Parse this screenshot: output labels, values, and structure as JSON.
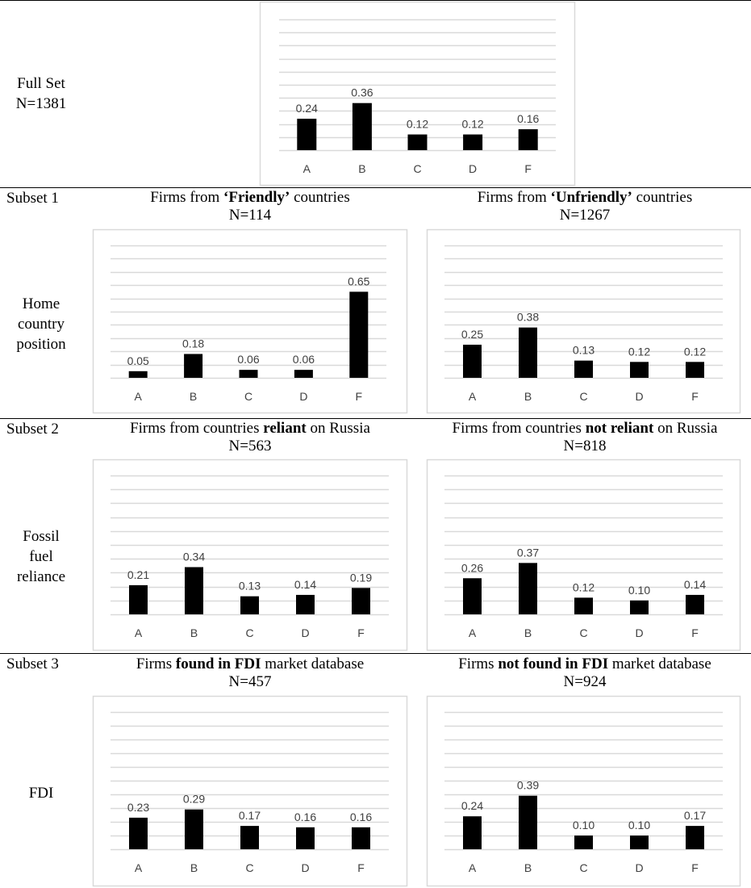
{
  "rows": [
    {
      "label": [
        "Full Set",
        "N=1381"
      ]
    },
    {
      "subset": "Subset 1",
      "label": [
        "Home",
        "country",
        "position"
      ]
    },
    {
      "subset": "Subset 2",
      "label": [
        "Fossil",
        "fuel",
        "reliance"
      ]
    },
    {
      "subset": "Subset 3",
      "label": [
        "FDI"
      ]
    }
  ],
  "headings": [
    {
      "pre": "Firms from ",
      "bold": "‘Friendly’",
      "post": " countries",
      "n": "N=114"
    },
    {
      "pre": "Firms from ",
      "bold": "‘Unfriendly’",
      "post": " countries",
      "n": "N=1267"
    },
    {
      "pre": "Firms from countries ",
      "bold": "reliant",
      "post": " on Russia",
      "n": "N=563"
    },
    {
      "pre": "Firms from countries ",
      "bold": "not reliant",
      "post": " on Russia",
      "n": "N=818"
    },
    {
      "pre": "Firms ",
      "bold": "found in FDI",
      "post": " market database",
      "n": "N=457"
    },
    {
      "pre": "Firms ",
      "bold": "not found in FDI",
      "post": " market database",
      "n": "N=924"
    }
  ],
  "colors": {
    "bar": "#000000",
    "grid": "#d9d9d9",
    "frame": "#d9d9d9",
    "label": "#404040"
  },
  "chart_data": [
    {
      "type": "bar",
      "categories": [
        "A",
        "B",
        "C",
        "D",
        "F"
      ],
      "values": [
        0.24,
        0.36,
        0.12,
        0.12,
        0.16
      ],
      "value_labels": [
        "0.24",
        "0.36",
        "0.12",
        "0.12",
        "0.16"
      ],
      "ylim": [
        0,
        1.0
      ],
      "grid": true
    },
    {
      "type": "bar",
      "categories": [
        "A",
        "B",
        "C",
        "D",
        "F"
      ],
      "values": [
        0.05,
        0.18,
        0.06,
        0.06,
        0.65
      ],
      "value_labels": [
        "0.05",
        "0.18",
        "0.06",
        "0.06",
        "0.65"
      ],
      "ylim": [
        0,
        1.0
      ],
      "grid": true
    },
    {
      "type": "bar",
      "categories": [
        "A",
        "B",
        "C",
        "D",
        "F"
      ],
      "values": [
        0.25,
        0.38,
        0.13,
        0.12,
        0.12
      ],
      "value_labels": [
        "0.25",
        "0.38",
        "0.13",
        "0.12",
        "0.12"
      ],
      "ylim": [
        0,
        1.0
      ],
      "grid": true
    },
    {
      "type": "bar",
      "categories": [
        "A",
        "B",
        "C",
        "D",
        "F"
      ],
      "values": [
        0.21,
        0.34,
        0.13,
        0.14,
        0.19
      ],
      "value_labels": [
        "0.21",
        "0.34",
        "0.13",
        "0.14",
        "0.19"
      ],
      "ylim": [
        0,
        1.0
      ],
      "grid": true
    },
    {
      "type": "bar",
      "categories": [
        "A",
        "B",
        "C",
        "D",
        "F"
      ],
      "values": [
        0.26,
        0.37,
        0.12,
        0.1,
        0.14
      ],
      "value_labels": [
        "0.26",
        "0.37",
        "0.12",
        "0.10",
        "0.14"
      ],
      "ylim": [
        0,
        1.0
      ],
      "grid": true
    },
    {
      "type": "bar",
      "categories": [
        "A",
        "B",
        "C",
        "D",
        "F"
      ],
      "values": [
        0.23,
        0.29,
        0.17,
        0.16,
        0.16
      ],
      "value_labels": [
        "0.23",
        "0.29",
        "0.17",
        "0.16",
        "0.16"
      ],
      "ylim": [
        0,
        1.0
      ],
      "grid": true
    },
    {
      "type": "bar",
      "categories": [
        "A",
        "B",
        "C",
        "D",
        "F"
      ],
      "values": [
        0.24,
        0.39,
        0.1,
        0.1,
        0.17
      ],
      "value_labels": [
        "0.24",
        "0.39",
        "0.10",
        "0.10",
        "0.17"
      ],
      "ylim": [
        0,
        1.0
      ],
      "grid": true
    }
  ]
}
